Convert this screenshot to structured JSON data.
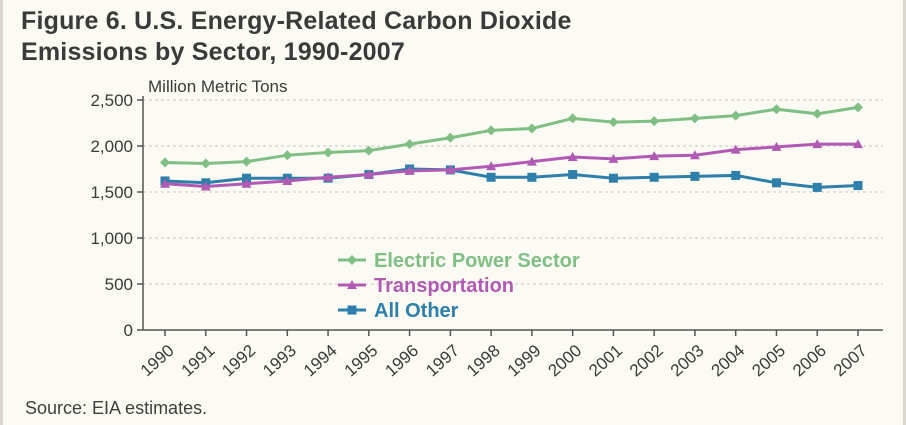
{
  "figure": {
    "title_line1": "Figure 6.  U.S. Energy-Related Carbon Dioxide",
    "title_line2": "Emissions by Sector, 1990-2007",
    "source": "Source: EIA estimates."
  },
  "chart_data": {
    "type": "line",
    "ylabel": "Million Metric Tons",
    "xlabel": "",
    "ylim": [
      0,
      2500
    ],
    "yticks": [
      0,
      500,
      1000,
      1500,
      2000,
      2500
    ],
    "ytick_labels": [
      "0",
      "500",
      "1,000",
      "1,500",
      "2,000",
      "2,500"
    ],
    "grid": true,
    "legend_position": "center",
    "categories": [
      "1990",
      "1991",
      "1992",
      "1993",
      "1994",
      "1995",
      "1996",
      "1997",
      "1998",
      "1999",
      "2000",
      "2001",
      "2002",
      "2003",
      "2004",
      "2005",
      "2006",
      "2007"
    ],
    "series": [
      {
        "name": "Electric Power Sector",
        "color": "#7fbf84",
        "marker": "diamond",
        "values": [
          1820,
          1810,
          1830,
          1900,
          1930,
          1950,
          2020,
          2090,
          2170,
          2190,
          2300,
          2260,
          2270,
          2300,
          2330,
          2400,
          2350,
          2420
        ]
      },
      {
        "name": "Transportation",
        "color": "#b05ab4",
        "marker": "triangle",
        "values": [
          1590,
          1560,
          1590,
          1620,
          1660,
          1690,
          1730,
          1740,
          1780,
          1830,
          1880,
          1860,
          1890,
          1900,
          1960,
          1990,
          2020,
          2020
        ]
      },
      {
        "name": "All Other",
        "color": "#2e7fa9",
        "marker": "square",
        "values": [
          1620,
          1600,
          1650,
          1650,
          1650,
          1690,
          1750,
          1740,
          1660,
          1660,
          1690,
          1650,
          1660,
          1670,
          1680,
          1600,
          1550,
          1570
        ]
      }
    ]
  }
}
